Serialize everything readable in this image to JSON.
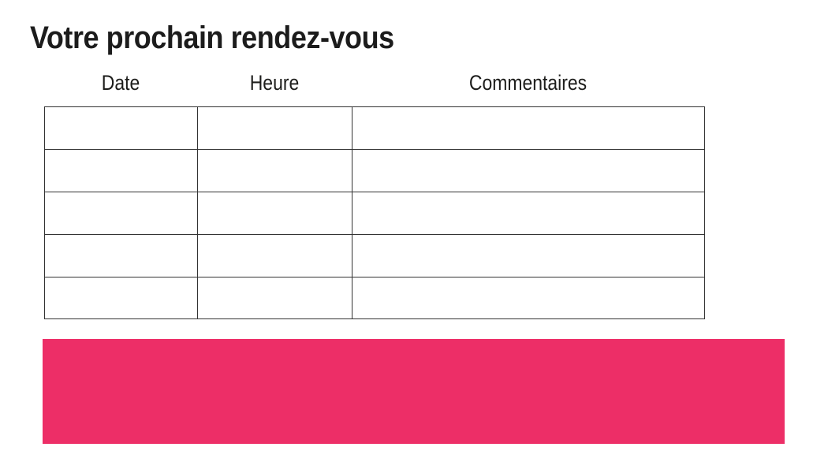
{
  "page": {
    "title": "Votre prochain rendez-vous",
    "background": "#ffffff"
  },
  "appointments_table": {
    "columns": [
      "Date",
      "Heure",
      "Commentaires"
    ],
    "rows": [
      [
        "",
        "",
        ""
      ],
      [
        "",
        "",
        ""
      ],
      [
        "",
        "",
        ""
      ],
      [
        "",
        "",
        ""
      ],
      [
        "",
        "",
        ""
      ]
    ]
  },
  "banner": {
    "color": "#ED2E67"
  },
  "colors": {
    "text": "#1d1d1b",
    "table_border": "#333333"
  }
}
